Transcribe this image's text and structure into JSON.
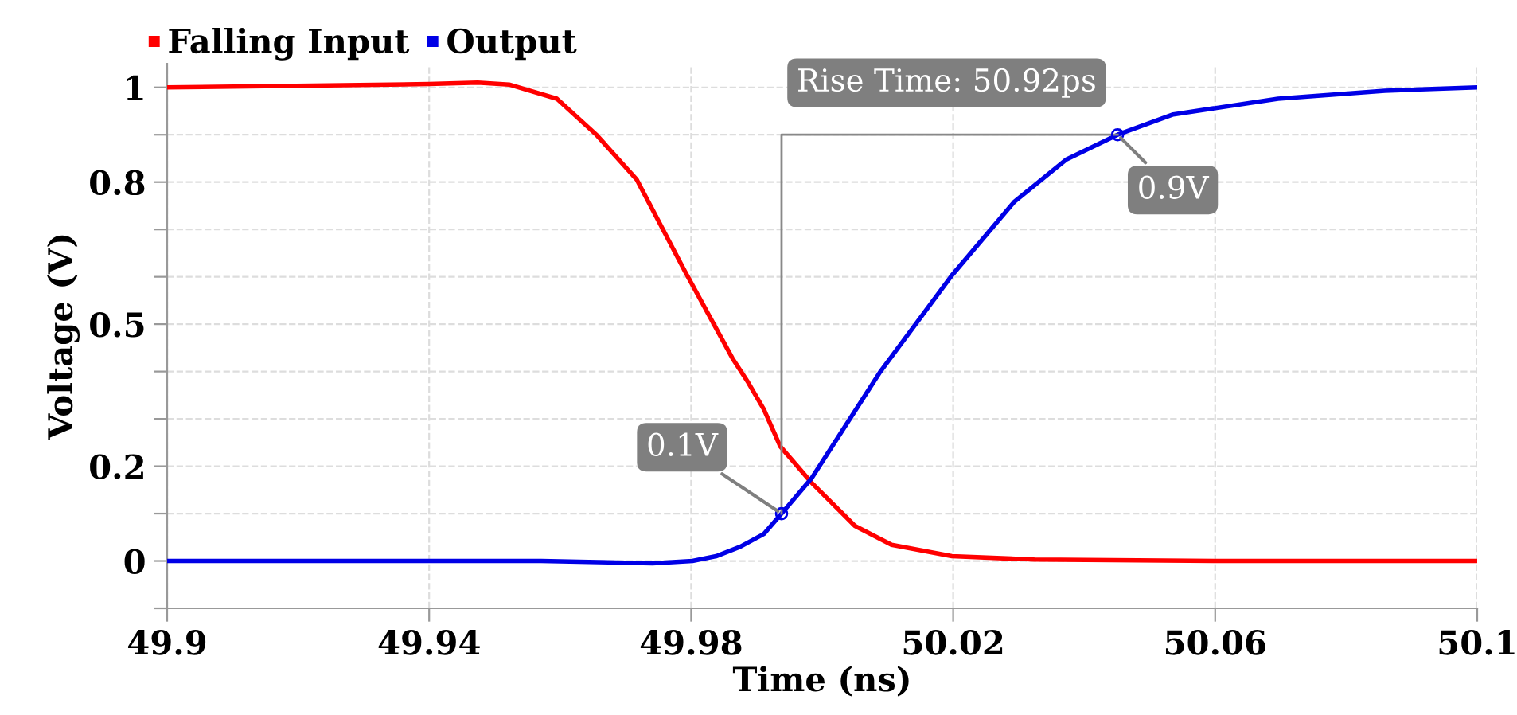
{
  "chart_data": {
    "type": "line",
    "xlabel": "Time (ns)",
    "ylabel": "Voltage (V)",
    "series": [
      {
        "name": "Falling Input",
        "color": "#ff0000",
        "x": [
          49.9,
          49.94,
          49.9474,
          49.9522,
          49.9595,
          49.9656,
          49.9717,
          49.979,
          49.9863,
          49.9887,
          49.9911,
          49.9936,
          49.9984,
          50.005,
          50.0106,
          50.0198,
          50.0324,
          50.06,
          50.1
        ],
        "values": [
          1.0,
          1.007,
          1.01,
          1.006,
          0.976,
          0.899,
          0.805,
          0.613,
          0.428,
          0.377,
          0.32,
          0.242,
          0.165,
          0.074,
          0.034,
          0.01,
          0.003,
          0.0,
          0.0
        ]
      },
      {
        "name": "Output",
        "color": "#0000e6",
        "x": [
          49.9,
          49.9571,
          49.9741,
          49.9802,
          49.9838,
          49.9875,
          49.9911,
          49.9938,
          49.9984,
          50.0089,
          50.0198,
          50.0293,
          50.0373,
          50.0451,
          50.0536,
          50.0696,
          50.0859,
          50.1
        ],
        "values": [
          0.0,
          0.0,
          -0.005,
          0.0,
          0.01,
          0.03,
          0.057,
          0.1,
          0.175,
          0.4,
          0.603,
          0.758,
          0.848,
          0.9,
          0.943,
          0.976,
          0.993,
          1.0
        ]
      },
      {
        "color": "#888888",
        "x": [
          49.9938,
          49.9938,
          50.0451
        ],
        "values": [
          0.1,
          0.9,
          0.9
        ]
      }
    ],
    "xlim": [
      49.9,
      50.1
    ],
    "xticks": [
      49.9,
      49.94,
      49.98,
      50.02,
      50.06,
      50.1
    ],
    "ylim": [
      -0.1,
      1.05
    ],
    "yticks": [
      {
        "value": -0.1,
        "label": null
      },
      0,
      {
        "value": 0.1,
        "label": null
      },
      0.2,
      {
        "value": 0.3,
        "label": null
      },
      {
        "value": 0.4,
        "label": null
      },
      0.5,
      {
        "value": 0.6,
        "label": null
      },
      {
        "value": 0.7,
        "label": null
      },
      0.8,
      {
        "value": 0.9,
        "label": null
      },
      1
    ],
    "grid": true,
    "legend": "top left",
    "marker": "none",
    "line_style": "solid",
    "annotations": [
      "Rise Time: 50.92ps",
      {
        "text": "0.1V",
        "x": 49.9938,
        "y": 0.1
      },
      {
        "text": "0.9V",
        "x": 50.0451,
        "y": 0.9
      }
    ]
  }
}
